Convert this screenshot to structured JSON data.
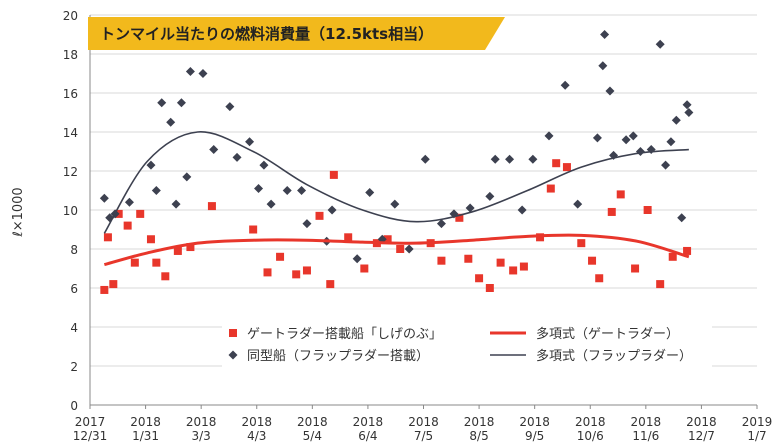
{
  "chart_data": {
    "type": "scatter",
    "title": "トンマイル当たりの燃料消費量（12.5kts相当）",
    "y_label": "ℓ×1000",
    "xlim": [
      "2017-12-31",
      "2019-01-07"
    ],
    "xticks": [
      {
        "value": "2017-12-31",
        "label": "2017\n12/31"
      },
      {
        "value": "2018-01-31",
        "label": "2018\n1/31"
      },
      {
        "value": "2018-03-03",
        "label": "2018\n3/3"
      },
      {
        "value": "2018-04-03",
        "label": "2018\n4/3"
      },
      {
        "value": "2018-05-04",
        "label": "2018\n5/4"
      },
      {
        "value": "2018-06-04",
        "label": "2018\n6/4"
      },
      {
        "value": "2018-07-05",
        "label": "2018\n7/5"
      },
      {
        "value": "2018-08-05",
        "label": "2018\n8/5"
      },
      {
        "value": "2018-09-05",
        "label": "2018\n9/5"
      },
      {
        "value": "2018-10-06",
        "label": "2018\n10/6"
      },
      {
        "value": "2018-11-06",
        "label": "2018\n11/6"
      },
      {
        "value": "2018-12-07",
        "label": "2018\n12/7"
      },
      {
        "value": "2019-01-07",
        "label": "2019\n1/7"
      }
    ],
    "ylim": [
      0,
      20
    ],
    "yticks": [
      0,
      2,
      4,
      6,
      8,
      10,
      12,
      14,
      16,
      18,
      20
    ],
    "grid": true,
    "series": [
      {
        "name": "ゲートラダー搭載船「しげのぶ」",
        "type": "scatter",
        "marker": "square",
        "color": "#e8362b",
        "x": [
          "2018-01-08",
          "2018-01-10",
          "2018-01-13",
          "2018-01-16",
          "2018-01-21",
          "2018-01-25",
          "2018-01-28",
          "2018-02-03",
          "2018-02-06",
          "2018-02-11",
          "2018-02-18",
          "2018-02-25",
          "2018-03-09",
          "2018-04-01",
          "2018-04-09",
          "2018-04-16",
          "2018-04-25",
          "2018-05-01",
          "2018-05-08",
          "2018-05-14",
          "2018-05-16",
          "2018-05-24",
          "2018-06-02",
          "2018-06-09",
          "2018-06-15",
          "2018-06-22",
          "2018-07-09",
          "2018-07-15",
          "2018-07-25",
          "2018-07-30",
          "2018-08-05",
          "2018-08-11",
          "2018-08-17",
          "2018-08-24",
          "2018-08-30",
          "2018-09-08",
          "2018-09-14",
          "2018-09-17",
          "2018-09-23",
          "2018-10-01",
          "2018-10-07",
          "2018-10-11",
          "2018-10-18",
          "2018-10-23",
          "2018-10-31",
          "2018-11-07",
          "2018-11-14",
          "2018-11-21",
          "2018-11-29"
        ],
        "values": [
          5.9,
          8.6,
          6.2,
          9.8,
          9.2,
          7.3,
          9.8,
          8.5,
          7.3,
          6.6,
          7.9,
          8.1,
          10.2,
          9.0,
          6.8,
          7.6,
          6.7,
          6.9,
          9.7,
          6.2,
          11.8,
          8.6,
          7.0,
          8.3,
          8.5,
          8.0,
          8.3,
          7.4,
          9.6,
          7.5,
          6.5,
          6.0,
          7.3,
          6.9,
          7.1,
          8.6,
          11.1,
          12.4,
          12.2,
          8.3,
          7.4,
          6.5,
          9.9,
          10.8,
          7.0,
          10.0,
          6.2,
          7.6,
          7.9
        ]
      },
      {
        "name": "同型船（フラップラダー搭載）",
        "type": "scatter",
        "marker": "diamond",
        "color": "#3d4150",
        "x": [
          "2018-01-08",
          "2018-01-11",
          "2018-01-14",
          "2018-01-22",
          "2018-02-03",
          "2018-02-06",
          "2018-02-09",
          "2018-02-14",
          "2018-02-17",
          "2018-02-20",
          "2018-02-23",
          "2018-02-25",
          "2018-03-04",
          "2018-03-10",
          "2018-03-19",
          "2018-03-23",
          "2018-03-30",
          "2018-04-04",
          "2018-04-07",
          "2018-04-11",
          "2018-04-20",
          "2018-04-28",
          "2018-05-01",
          "2018-05-12",
          "2018-05-15",
          "2018-05-29",
          "2018-06-05",
          "2018-06-12",
          "2018-06-19",
          "2018-06-27",
          "2018-07-06",
          "2018-07-15",
          "2018-07-22",
          "2018-07-31",
          "2018-08-11",
          "2018-08-14",
          "2018-08-22",
          "2018-08-29",
          "2018-09-04",
          "2018-09-13",
          "2018-09-22",
          "2018-09-29",
          "2018-10-10",
          "2018-10-13",
          "2018-10-14",
          "2018-10-17",
          "2018-10-19",
          "2018-10-26",
          "2018-10-30",
          "2018-11-03",
          "2018-11-09",
          "2018-11-14",
          "2018-11-17",
          "2018-11-20",
          "2018-11-23",
          "2018-11-26",
          "2018-11-29",
          "2018-11-30"
        ],
        "values": [
          10.6,
          9.6,
          9.8,
          10.4,
          12.3,
          11.0,
          15.5,
          14.5,
          10.3,
          15.5,
          11.7,
          17.1,
          17.0,
          13.1,
          15.3,
          12.7,
          13.5,
          11.1,
          12.3,
          10.3,
          11.0,
          11.0,
          9.3,
          8.4,
          10.0,
          7.5,
          10.9,
          8.5,
          10.3,
          8.0,
          12.6,
          9.3,
          9.8,
          10.1,
          10.7,
          12.6,
          12.6,
          10.0,
          12.6,
          13.8,
          16.4,
          10.3,
          13.7,
          17.4,
          19.0,
          16.1,
          12.8,
          13.6,
          13.8,
          13.0,
          13.1,
          18.5,
          12.3,
          13.5,
          14.6,
          9.6,
          15.4,
          15.0
        ]
      },
      {
        "name": "多項式（ゲートラダー）",
        "type": "line",
        "color": "#e8362b",
        "x": [
          "2018-01-08",
          "2018-02-01",
          "2018-03-01",
          "2018-04-01",
          "2018-05-01",
          "2018-06-01",
          "2018-07-01",
          "2018-08-01",
          "2018-09-01",
          "2018-10-01",
          "2018-11-01",
          "2018-11-30"
        ],
        "values": [
          7.2,
          7.8,
          8.3,
          8.45,
          8.45,
          8.35,
          8.3,
          8.45,
          8.65,
          8.7,
          8.4,
          7.6
        ]
      },
      {
        "name": "多項式（フラップラダー）",
        "type": "line",
        "color": "#3d4150",
        "x": [
          "2018-01-08",
          "2018-02-01",
          "2018-03-01",
          "2018-04-01",
          "2018-05-01",
          "2018-06-01",
          "2018-07-01",
          "2018-08-01",
          "2018-09-01",
          "2018-10-01",
          "2018-11-01",
          "2018-11-30"
        ],
        "values": [
          8.8,
          12.5,
          14.0,
          13.0,
          11.3,
          10.0,
          9.4,
          9.9,
          11.0,
          12.2,
          12.9,
          13.1
        ]
      }
    ]
  }
}
